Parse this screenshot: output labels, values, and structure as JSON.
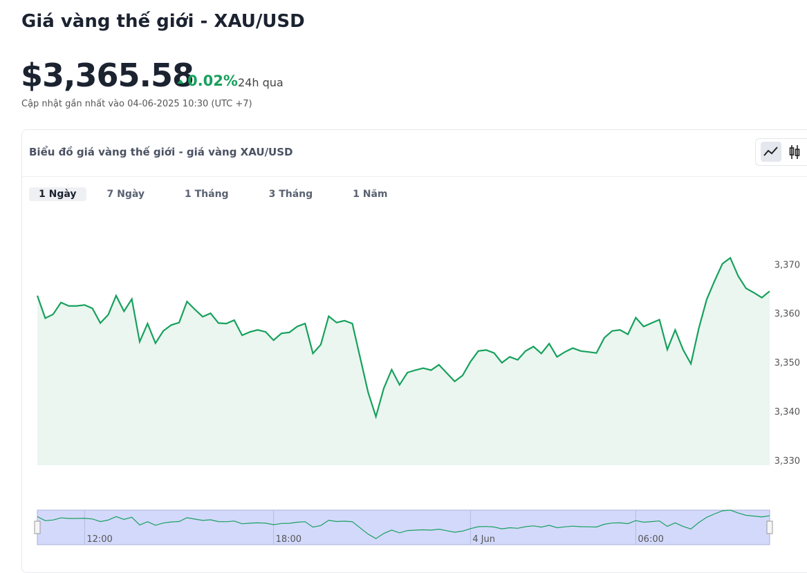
{
  "header": {
    "title": "Giá vàng thế giới - XAU/USD",
    "price": "$3,365.58",
    "change": "0.02%",
    "period": "24h qua",
    "updated": "Cập nhật gần nhất vào 04-06-2025 10:30 (UTC +7)"
  },
  "card": {
    "title": "Biểu đồ giá vàng thế giới - giá vàng XAU/USD",
    "tabs": [
      "1 Ngày",
      "7 Ngày",
      "1 Tháng",
      "3 Tháng",
      "1 Năm"
    ]
  },
  "chart_data": {
    "type": "line",
    "color": "#17a05d",
    "area_color": "#eaf6ef",
    "categories": [
      null,
      null,
      null,
      null,
      null,
      null,
      "12:00",
      null,
      null,
      null,
      null,
      null,
      null,
      null,
      null,
      null,
      null,
      null,
      null,
      null,
      null,
      null,
      null,
      null,
      null,
      null,
      null,
      null,
      null,
      null,
      "18:00",
      null,
      null,
      null,
      null,
      null,
      null,
      null,
      null,
      null,
      null,
      null,
      null,
      null,
      null,
      null,
      null,
      null,
      null,
      null,
      null,
      null,
      null,
      null,
      null,
      "4 Jun",
      null,
      null,
      null,
      null,
      null,
      null,
      null,
      null,
      null,
      null,
      null,
      null,
      null,
      null,
      null,
      null,
      null,
      null,
      null,
      null,
      "06:00",
      null,
      null,
      null,
      null,
      null,
      null,
      null,
      null,
      null,
      null,
      null,
      null,
      null,
      null,
      null,
      null,
      null
    ],
    "values": [
      3363.6,
      3359.0,
      3359.8,
      3362.2,
      3361.5,
      3361.5,
      3361.7,
      3361.0,
      3358.0,
      3359.7,
      3363.6,
      3360.4,
      3362.9,
      3354.2,
      3357.9,
      3353.9,
      3356.4,
      3357.6,
      3358.1,
      3362.4,
      3360.8,
      3359.3,
      3360.0,
      3358.0,
      3357.9,
      3358.6,
      3355.5,
      3356.2,
      3356.6,
      3356.2,
      3354.5,
      3355.9,
      3356.1,
      3357.3,
      3357.9,
      3351.8,
      3353.6,
      3359.4,
      3358.1,
      3358.5,
      3357.9,
      3350.9,
      3343.9,
      3338.9,
      3344.7,
      3348.5,
      3345.4,
      3347.9,
      3348.4,
      3348.8,
      3348.4,
      3349.5,
      3347.8,
      3346.1,
      3347.3,
      3350.1,
      3352.3,
      3352.5,
      3351.9,
      3349.9,
      3351.1,
      3350.5,
      3352.3,
      3353.2,
      3351.8,
      3353.8,
      3351.1,
      3352.1,
      3352.9,
      3352.3,
      3352.1,
      3351.9,
      3355.0,
      3356.4,
      3356.6,
      3355.7,
      3359.1,
      3357.3,
      3358.0,
      3358.7,
      3352.6,
      3356.6,
      3352.6,
      3349.7,
      3356.9,
      3362.8,
      3366.6,
      3370.1,
      3371.3,
      3367.6,
      3365.1,
      3364.2,
      3363.2,
      3364.5
    ],
    "ylim": [
      3329,
      3374
    ],
    "yticks": [
      {
        "value": 3330,
        "label": "3,330"
      },
      {
        "value": 3340,
        "label": "3,340"
      },
      {
        "value": 3350,
        "label": "3,350"
      },
      {
        "value": 3360,
        "label": "3,360"
      },
      {
        "value": 3370,
        "label": "3,370"
      }
    ]
  }
}
